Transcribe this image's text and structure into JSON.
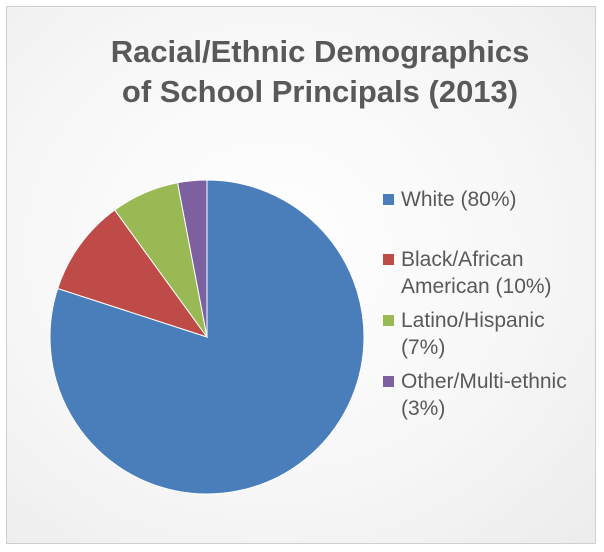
{
  "chart_data": {
    "type": "pie",
    "title_lines": [
      "Racial/Ethnic Demographics",
      "of School Principals (2013)"
    ],
    "slices": [
      {
        "label_lines": [
          "White (80%)"
        ],
        "value": 80,
        "color": "#4a7ebb"
      },
      {
        "label_lines": [
          "Black/African",
          "American (10%)"
        ],
        "value": 10,
        "color": "#be4b48"
      },
      {
        "label_lines": [
          "Latino/Hispanic",
          "(7%)"
        ],
        "value": 7,
        "color": "#98b954"
      },
      {
        "label_lines": [
          "Other/Multi-ethnic",
          "(3%)"
        ],
        "value": 3,
        "color": "#7d60a0"
      }
    ],
    "legend_position": "right"
  }
}
